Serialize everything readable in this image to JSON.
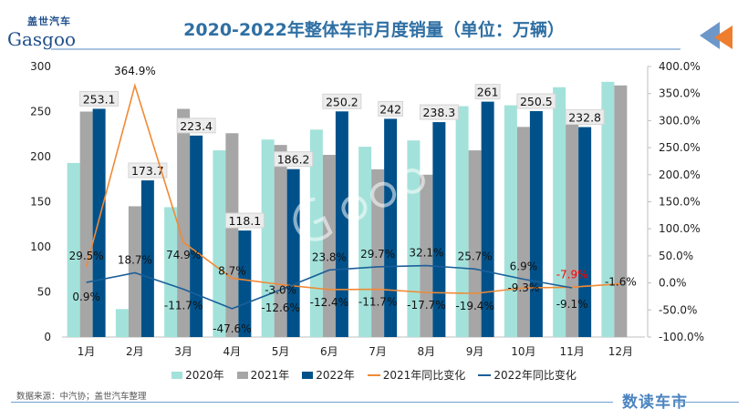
{
  "header": {
    "title": "2020-2022年整体车市月度销量（单位：万辆）",
    "logo_cn": "盖世汽车",
    "logo_en": "Gasgoo"
  },
  "footer": {
    "source": "数据来源：中汽协；盖世汽车整理",
    "brand": "数读车市"
  },
  "colors": {
    "s2020": "#a3e2da",
    "s2021": "#a6a6a6",
    "s2022": "#00518a",
    "yoy2021": "#f08a35",
    "yoy2022": "#1b5f99",
    "title": "#2f6fa3",
    "negative_highlight": "#ff0000"
  },
  "chart_data": {
    "type": "bar+line",
    "title": "2020-2022年整体车市月度销量（单位：万辆）",
    "categories": [
      "1月",
      "2月",
      "3月",
      "4月",
      "5月",
      "6月",
      "7月",
      "8月",
      "9月",
      "10月",
      "11月",
      "12月"
    ],
    "y_left": {
      "min": 0,
      "max": 300,
      "ticks": [
        "0",
        "50",
        "100",
        "150",
        "200",
        "250",
        "300"
      ]
    },
    "y_right": {
      "min": -100,
      "max": 400,
      "ticks": [
        "-100.0%",
        "-50.0%",
        "0.0%",
        "50.0%",
        "100.0%",
        "150.0%",
        "200.0%",
        "250.0%",
        "300.0%",
        "350.0%",
        "400.0%"
      ]
    },
    "grid": false,
    "legend_position": "bottom",
    "bars": [
      {
        "name": "2020年",
        "values": [
          193,
          31,
          144,
          207,
          219,
          230,
          211,
          218,
          256,
          257,
          277,
          283
        ]
      },
      {
        "name": "2021年",
        "values": [
          250,
          145,
          253,
          226,
          213,
          202,
          186,
          180,
          207,
          233,
          252,
          279
        ]
      },
      {
        "name": "2022年",
        "values": [
          253.1,
          173.7,
          223.4,
          118.1,
          186.2,
          250.2,
          242,
          238.3,
          261,
          250.5,
          232.8,
          null
        ],
        "labels": [
          "253.1",
          "173.7",
          "223.4",
          "118.1",
          "186.2",
          "250.2",
          "242",
          "238.3",
          "261",
          "250.5",
          "232.8",
          ""
        ]
      }
    ],
    "lines": [
      {
        "name": "2021年同比变化",
        "axis": "right",
        "values": [
          29.5,
          364.9,
          74.9,
          8.7,
          -3.0,
          -12.4,
          -11.7,
          -17.7,
          -19.4,
          -9.3,
          -7.9,
          -1.6
        ],
        "labels": [
          "29.5%",
          "364.9%",
          "74.9%",
          "8.7%",
          "-3.0%",
          "-12.4%",
          "-11.7%",
          "-17.7%",
          "-19.4%",
          "-9.3%",
          "-7.9%",
          "-1.6%"
        ]
      },
      {
        "name": "2022年同比变化",
        "axis": "right",
        "values": [
          0.9,
          18.7,
          -11.7,
          -47.6,
          -12.6,
          23.8,
          29.7,
          32.1,
          25.7,
          6.9,
          -9.1,
          null
        ],
        "labels": [
          "0.9%",
          "18.7%",
          "-11.7%",
          "-47.6%",
          "-12.6%",
          "23.8%",
          "29.7%",
          "32.1%",
          "25.7%",
          "6.9%",
          "-9.1%",
          ""
        ]
      }
    ]
  }
}
